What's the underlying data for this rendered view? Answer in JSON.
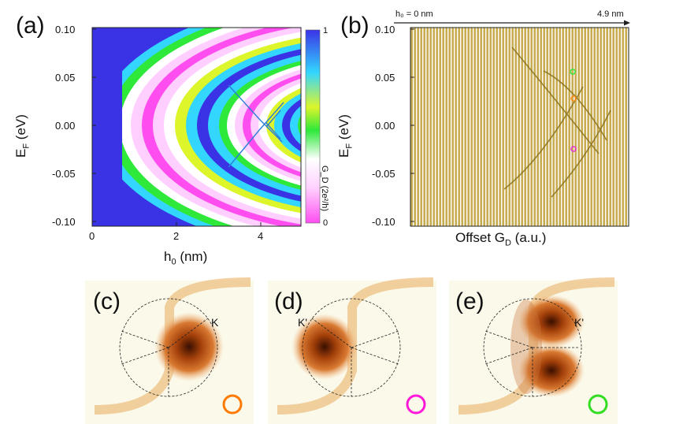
{
  "panels": {
    "a": {
      "label": "(a)",
      "ylabel_main": "E",
      "ylabel_sub": "F",
      "ylabel_unit": " (eV)",
      "xlabel_main": "h",
      "xlabel_sub": "0",
      "xlabel_unit": " (nm)",
      "yticks": [
        "0.10",
        "0.05",
        "0.00",
        "-0.05",
        "-0.10"
      ],
      "xticks": [
        "0",
        "2",
        "4"
      ],
      "colorbar": {
        "title": "G_D (2e²/h)",
        "max_label": "1",
        "min_label": "0",
        "colors": [
          "#ff4df0",
          "#ffd0ff",
          "#ffffff",
          "#2ee83a",
          "#ddf52b",
          "#33d6ff",
          "#3a33e6"
        ]
      }
    },
    "b": {
      "label": "(b)",
      "arrow_start": "h₀ = 0 nm",
      "arrow_end": "4.9 nm",
      "ylabel_main": "E",
      "ylabel_sub": "F",
      "ylabel_unit": " (eV)",
      "xlabel_main": "Offset G",
      "xlabel_sub": "D",
      "xlabel_unit": " (a.u.)",
      "yticks": [
        "0.10",
        "0.05",
        "0.00",
        "-0.05",
        "-0.10"
      ],
      "markers": [
        {
          "color": "#2ee83a",
          "energy": 0.05
        },
        {
          "color": "#ff8a1a",
          "energy": 0.025
        },
        {
          "color": "#e62ad8",
          "energy": -0.025
        }
      ]
    },
    "c": {
      "label": "(c)",
      "valley": "K",
      "ring_color": "#ff7a00"
    },
    "d": {
      "label": "(d)",
      "valley": "K'",
      "ring_color": "#ff1ad9"
    },
    "e": {
      "label": "(e)",
      "valley": "K'",
      "ring_color": "#33dd22"
    }
  },
  "chart_data": [
    {
      "type": "heatmap",
      "title": "(a)",
      "xlabel": "h0 (nm)",
      "ylabel": "EF (eV)",
      "xlim": [
        0,
        4.9
      ],
      "ylim": [
        -0.105,
        0.105
      ],
      "zlabel": "GD (2e^2/h)",
      "zlim": [
        0,
        1
      ]
    },
    {
      "type": "line",
      "title": "(b)",
      "xlabel": "Offset GD (a.u.)",
      "ylabel": "EF (eV)",
      "xlim": [
        0,
        4.9
      ],
      "ylim": [
        -0.105,
        0.105
      ]
    }
  ]
}
